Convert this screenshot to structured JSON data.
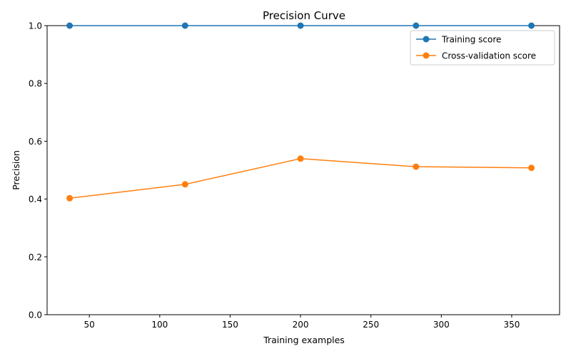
{
  "chart_data": {
    "type": "line",
    "title": "Precision Curve",
    "xlabel": "Training examples",
    "ylabel": "Precision",
    "xlim": [
      20,
      384
    ],
    "ylim": [
      0.0,
      1.0
    ],
    "xticks": [
      50,
      100,
      150,
      200,
      250,
      300,
      350
    ],
    "yticks": [
      0.0,
      0.2,
      0.4,
      0.6,
      0.8,
      1.0
    ],
    "xtick_labels": [
      "50",
      "100",
      "150",
      "200",
      "250",
      "300",
      "350"
    ],
    "ytick_labels": [
      "0.0",
      "0.2",
      "0.4",
      "0.6",
      "0.8",
      "1.0"
    ],
    "x": [
      36,
      118,
      200,
      282,
      364
    ],
    "series": [
      {
        "name": "Training score",
        "color": "#1f77b4",
        "values": [
          1.0,
          1.0,
          1.0,
          1.0,
          1.0
        ]
      },
      {
        "name": "Cross-validation score",
        "color": "#ff7f0e",
        "values": [
          0.403,
          0.451,
          0.54,
          0.512,
          0.508
        ]
      }
    ],
    "legend": {
      "placement": "top-right",
      "entries": [
        "Training score",
        "Cross-validation score"
      ]
    },
    "grid": false
  }
}
